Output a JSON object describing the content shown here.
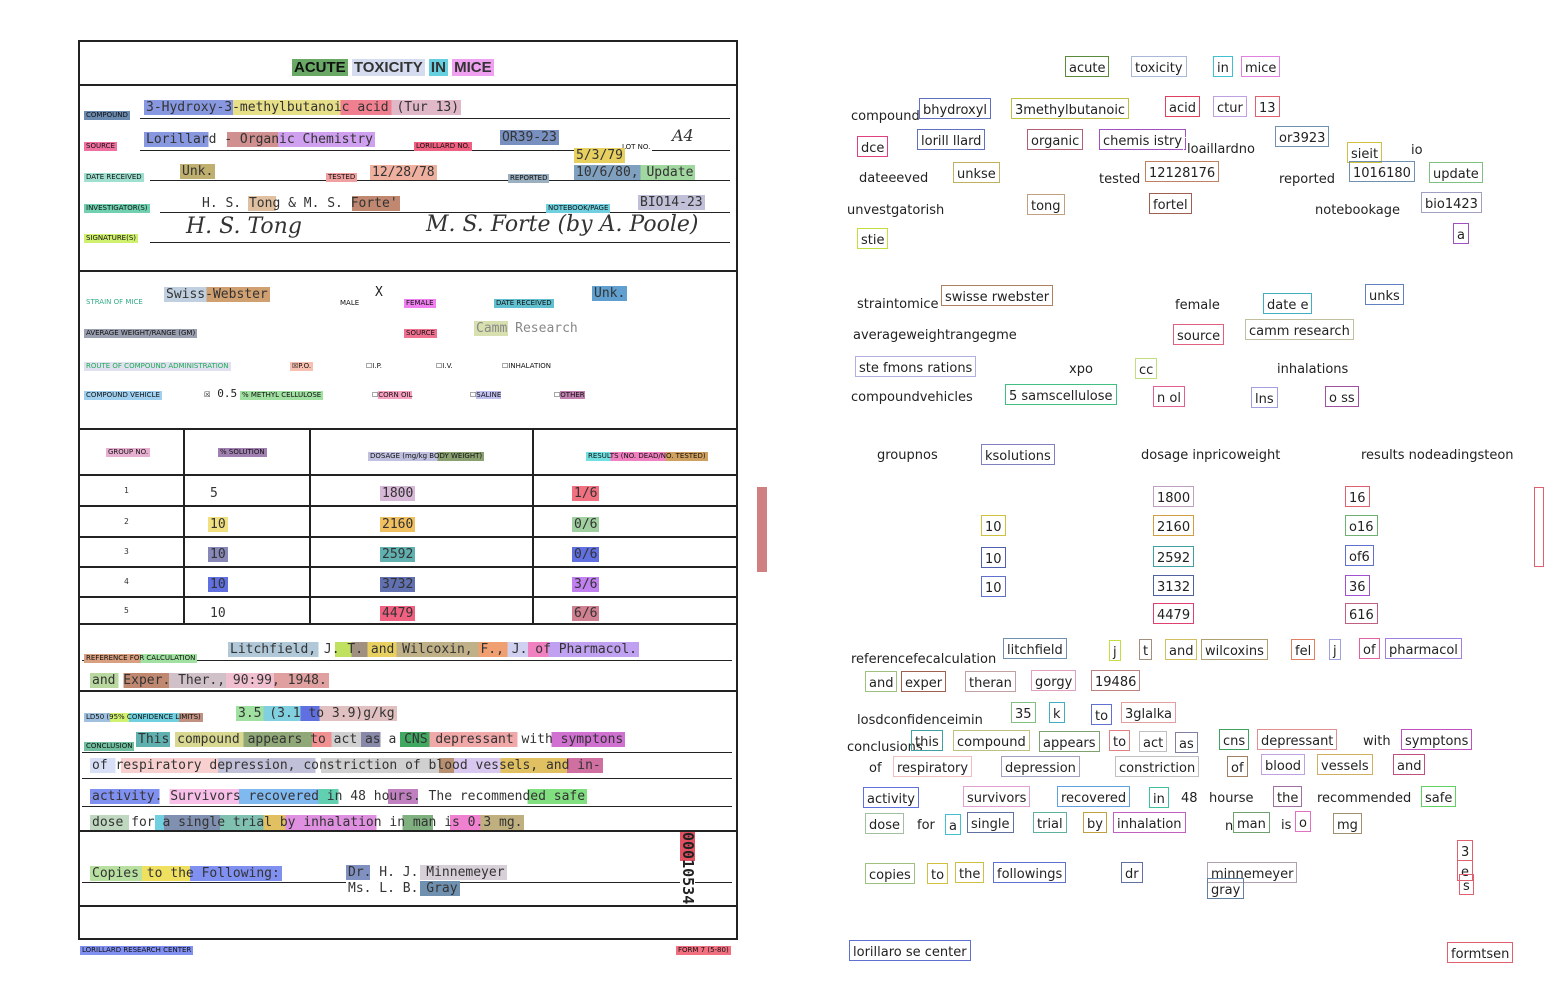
{
  "form": {
    "title": [
      "ACUTE",
      "TOXICITY",
      "IN",
      "MICE"
    ],
    "compound_label": "COMPOUND",
    "compound_value": "3-Hydroxy-3-methylbutanoic acid (Tur 13)",
    "source_label": "SOURCE",
    "source_value": "Lorillard - Organic Chemistry",
    "lorillard_no_label": "LORILLARD NO.",
    "lorillard_no": "OR39-23",
    "lot_no_label": "LOT NO.",
    "lot_no": "A4",
    "lot_date": "5/3/79",
    "date_received_label": "DATE RECEIVED",
    "date_received": "Unk.",
    "tested_label": "TESTED",
    "tested": "12/28/78",
    "reported_label": "REPORTED",
    "reported": "10/6/80, Update",
    "investigators_label": "INVESTIGATOR(S)",
    "investigators": "H. S. Tong & M. S. Forte'",
    "notebook_label": "NOTEBOOK/PAGE",
    "notebook": "BIO14-23",
    "signature_label": "SIGNATURE(S)",
    "strain_label": "STRAIN OF MICE",
    "strain": "Swiss-Webster",
    "male_label": "MALE",
    "male_mark": "X",
    "female_label": "FEMALE",
    "animals_date_received_label": "DATE RECEIVED",
    "animals_date_received": "Unk.",
    "weight_label": "AVERAGE WEIGHT/RANGE (GM)",
    "animals_source_label": "SOURCE",
    "animals_source": "Camm Research",
    "route_label": "ROUTE OF COMPOUND ADMINISTRATION",
    "routes": [
      "P.O.",
      "I.P.",
      "I.V.",
      "INHALATION"
    ],
    "route_checked": "P.O.",
    "vehicle_label": "COMPOUND VEHICLE",
    "vehicle_value": "0.5",
    "vehicles": [
      "% METHYL CELLULOSE",
      "CORN OIL",
      "SALINE",
      "OTHER"
    ],
    "table_headers": [
      "GROUP NO.",
      "% SOLUTION",
      "DOSAGE (mg/kg BODY WEIGHT)",
      "RESULTS (NO. DEAD/NO. TESTED)"
    ],
    "table_rows": [
      {
        "group": "1",
        "solution": "5",
        "dosage": "1800",
        "result": "1/6"
      },
      {
        "group": "2",
        "solution": "10",
        "dosage": "2160",
        "result": "0/6"
      },
      {
        "group": "3",
        "solution": "10",
        "dosage": "2592",
        "result": "0/6"
      },
      {
        "group": "4",
        "solution": "10",
        "dosage": "3732",
        "result": "3/6"
      },
      {
        "group": "5",
        "solution": "10",
        "dosage": "4479",
        "result": "6/6"
      }
    ],
    "reference_label": "REFERENCE FOR CALCULATION",
    "reference_line1": "Litchfield, J. T. and Wilcoxin, F., J. of Pharmacol.",
    "reference_line2": "and Exper. Ther., 90:99, 1948.",
    "ld50_label": "LD50 (95% CONFIDENCE LIMITS)",
    "ld50": "3.5 (3.1 to 3.9)g/kg",
    "conclusion_label": "CONCLUSION",
    "conclusion_lines": [
      "This compound appears to act as a CNS depressant with symptons",
      "of respiratory depression, constriction of blood vessels, and in-",
      "activity. Survivors recovered in 48 hours. The recommended safe",
      "dose for a single trial by inhalation in man is 0.3 mg."
    ],
    "copies_label": "Copies to the Following:",
    "copies_names": [
      "Dr. H. J. Minnemeyer",
      "Ms. L. B. Gray"
    ],
    "doc_number": "00010534",
    "footer_left": "LORILLARD RESEARCH CENTER",
    "footer_right": "FORM 7 (5-80)"
  },
  "ocr": [
    {
      "t": "acute",
      "c": "#5a8a3a"
    },
    {
      "t": "toxicity",
      "c": "#aab8d8"
    },
    {
      "t": "in",
      "c": "#40c0d0"
    },
    {
      "t": "mice",
      "c": "#e080e0"
    },
    {
      "t": "compound",
      "c": "#fff"
    },
    {
      "t": "bhydroxyl",
      "c": "#6070c0"
    },
    {
      "t": "3methylbutanoic",
      "c": "#c0c040"
    },
    {
      "t": "acid",
      "c": "#e04060"
    },
    {
      "t": "ctur",
      "c": "#c0a0e0"
    },
    {
      "t": "13",
      "c": "#e06070"
    },
    {
      "t": "dce",
      "c": "#e04080"
    },
    {
      "t": "lorill llard",
      "c": "#6070c0"
    },
    {
      "t": "organic",
      "c": "#b06070"
    },
    {
      "t": "chemis istry",
      "c": "#a050c0"
    },
    {
      "t": "loaillardno",
      "c": "#fff"
    },
    {
      "t": "or3923",
      "c": "#7090b0"
    },
    {
      "t": "sieit",
      "c": "#d0c040"
    },
    {
      "t": "io",
      "c": "#fff"
    },
    {
      "t": "dateeeved",
      "c": "#fff"
    },
    {
      "t": "unkse",
      "c": "#c0b060"
    },
    {
      "t": "tested",
      "c": "#fff"
    },
    {
      "t": "12128176",
      "c": "#c08060"
    },
    {
      "t": "reported",
      "c": "#fff"
    },
    {
      "t": "1016180",
      "c": "#7090b0"
    },
    {
      "t": "update",
      "c": "#80c080"
    },
    {
      "t": "unvestgatorish",
      "c": "#fff"
    },
    {
      "t": "tong",
      "c": "#c0a080"
    },
    {
      "t": "fortel",
      "c": "#a06050"
    },
    {
      "t": "notebookage",
      "c": "#fff"
    },
    {
      "t": "bio1423",
      "c": "#a0a0c0"
    },
    {
      "t": "a",
      "c": "#a050c0"
    },
    {
      "t": "stie",
      "c": "#c0e040"
    },
    {
      "t": "straintomice",
      "c": "#fff"
    },
    {
      "t": "swisse rwebster",
      "c": "#b08060"
    },
    {
      "t": "female",
      "c": "#fff"
    },
    {
      "t": "date e",
      "c": "#40b0c0"
    },
    {
      "t": "unks",
      "c": "#6080c0"
    },
    {
      "t": "averageweightrangegme",
      "c": "#fff"
    },
    {
      "t": "source",
      "c": "#e06080"
    },
    {
      "t": "camm research",
      "c": "#c0c0a0"
    },
    {
      "t": "ste fmons rations",
      "c": "#b0b0e0"
    },
    {
      "t": "xpo",
      "c": "#fff"
    },
    {
      "t": "cc",
      "c": "#c0e080"
    },
    {
      "t": "inhalations",
      "c": "#fff"
    },
    {
      "t": "compoundvehicles",
      "c": "#fff"
    },
    {
      "t": "5 samscellulose",
      "c": "#40c080"
    },
    {
      "t": "n ol",
      "c": "#e06090"
    },
    {
      "t": "lns",
      "c": "#a0a0e0"
    },
    {
      "t": "o ss",
      "c": "#a050a0"
    },
    {
      "t": "groupnos",
      "c": "#fff"
    },
    {
      "t": "ksolutions",
      "c": "#8080c0"
    },
    {
      "t": "dosage inpricoweight",
      "c": "#fff"
    },
    {
      "t": "results nodeadingsteon",
      "c": "#fff"
    },
    {
      "t": "1800",
      "c": "#c0a0c0"
    },
    {
      "t": "16",
      "c": "#e06070"
    },
    {
      "t": "10",
      "c": "#d0c040"
    },
    {
      "t": "2160",
      "c": "#d0a040"
    },
    {
      "t": "o16",
      "c": "#70b070"
    },
    {
      "t": "10",
      "c": "#5060b0"
    },
    {
      "t": "2592",
      "c": "#40a0a0"
    },
    {
      "t": "of6",
      "c": "#6070d0"
    },
    {
      "t": "10",
      "c": "#6070d0"
    },
    {
      "t": "3132",
      "c": "#5060a0"
    },
    {
      "t": "36",
      "c": "#a050d0"
    },
    {
      "t": "4479",
      "c": "#e04070"
    },
    {
      "t": "616",
      "c": "#c06080"
    },
    {
      "t": "referencefecalculation",
      "c": "#fff"
    },
    {
      "t": "litchfield",
      "c": "#7090b0"
    },
    {
      "t": "j",
      "c": "#c0e040"
    },
    {
      "t": "t",
      "c": "#a09080"
    },
    {
      "t": "and",
      "c": "#d0c060"
    },
    {
      "t": "wilcoxins",
      "c": "#b0a070"
    },
    {
      "t": "fel",
      "c": "#e08060"
    },
    {
      "t": "j",
      "c": "#a0a0e0"
    },
    {
      "t": "of",
      "c": "#e060a0"
    },
    {
      "t": "pharmacol",
      "c": "#a080e0"
    },
    {
      "t": "and",
      "c": "#a0c080"
    },
    {
      "t": "exper",
      "c": "#a06050"
    },
    {
      "t": "theran",
      "c": "#c0a0a0"
    },
    {
      "t": "gorgy",
      "c": "#e0a0c0"
    },
    {
      "t": "19486",
      "c": "#c08080"
    },
    {
      "t": "losdconfidenceimin",
      "c": "#fff"
    },
    {
      "t": "35",
      "c": "#80c080"
    },
    {
      "t": "k",
      "c": "#40b0c0"
    },
    {
      "t": "to",
      "c": "#6070d0"
    },
    {
      "t": "3glalka",
      "c": "#e0a0a0"
    },
    {
      "t": "conclusions",
      "c": "#fff"
    },
    {
      "t": "this",
      "c": "#40a0a0"
    },
    {
      "t": "compound",
      "c": "#c0c080"
    },
    {
      "t": "appears",
      "c": "#80a070"
    },
    {
      "t": "to",
      "c": "#e08080"
    },
    {
      "t": "act",
      "c": "#c0c0c0"
    },
    {
      "t": "as",
      "c": "#8080a0"
    },
    {
      "t": "cns",
      "c": "#40a060"
    },
    {
      "t": "depressant",
      "c": "#e09090"
    },
    {
      "t": "with",
      "c": "#fff"
    },
    {
      "t": "symptons",
      "c": "#c050c0"
    },
    {
      "t": "of",
      "c": "#fff"
    },
    {
      "t": "respiratory",
      "c": "#f0c0c0"
    },
    {
      "t": "depression",
      "c": "#a0a0c0"
    },
    {
      "t": "constriction",
      "c": "#c0c0c0"
    },
    {
      "t": "of",
      "c": "#a08060"
    },
    {
      "t": "blood",
      "c": "#c0a0e0"
    },
    {
      "t": "vessels",
      "c": "#d0b060"
    },
    {
      "t": "and",
      "c": "#c05080"
    },
    {
      "t": "activity",
      "c": "#6070e0"
    },
    {
      "t": "survivors",
      "c": "#e0a0d0"
    },
    {
      "t": "recovered",
      "c": "#60a0e0"
    },
    {
      "t": "in",
      "c": "#40c0a0"
    },
    {
      "t": "48",
      "c": "#fff"
    },
    {
      "t": "hourse",
      "c": "#fff"
    },
    {
      "t": "the",
      "c": "#a070a0"
    },
    {
      "t": "recommended",
      "c": "#fff"
    },
    {
      "t": "safe",
      "c": "#60d060"
    },
    {
      "t": "dose",
      "c": "#a0c0a0"
    },
    {
      "t": "for",
      "c": "#fff"
    },
    {
      "t": "a",
      "c": "#40c0d0"
    },
    {
      "t": "single",
      "c": "#6070a0"
    },
    {
      "t": "trial",
      "c": "#60b0a0"
    },
    {
      "t": "by",
      "c": "#c0a040"
    },
    {
      "t": "inhalation",
      "c": "#c060c0"
    },
    {
      "t": "n",
      "c": "#fff"
    },
    {
      "t": "man",
      "c": "#70a070"
    },
    {
      "t": "is",
      "c": "#fff"
    },
    {
      "t": "o",
      "c": "#e070c0"
    },
    {
      "t": "mg",
      "c": "#a09070"
    },
    {
      "t": "copies",
      "c": "#a0c080"
    },
    {
      "t": "to",
      "c": "#d0c040"
    },
    {
      "t": "the",
      "c": "#d0c040"
    },
    {
      "t": "followings",
      "c": "#6070d0"
    },
    {
      "t": "dr",
      "c": "#6070a0"
    },
    {
      "t": "minnemeyer",
      "c": "#b0a0b0"
    },
    {
      "t": "gray",
      "c": "#6080a0"
    },
    {
      "t": "3",
      "c": "#e06070"
    },
    {
      "t": "e",
      "c": "#e06070"
    },
    {
      "t": "s",
      "c": "#e06070"
    },
    {
      "t": "lorillaro se center",
      "c": "#6070d0"
    },
    {
      "t": "formtsen",
      "c": "#e06070"
    }
  ]
}
